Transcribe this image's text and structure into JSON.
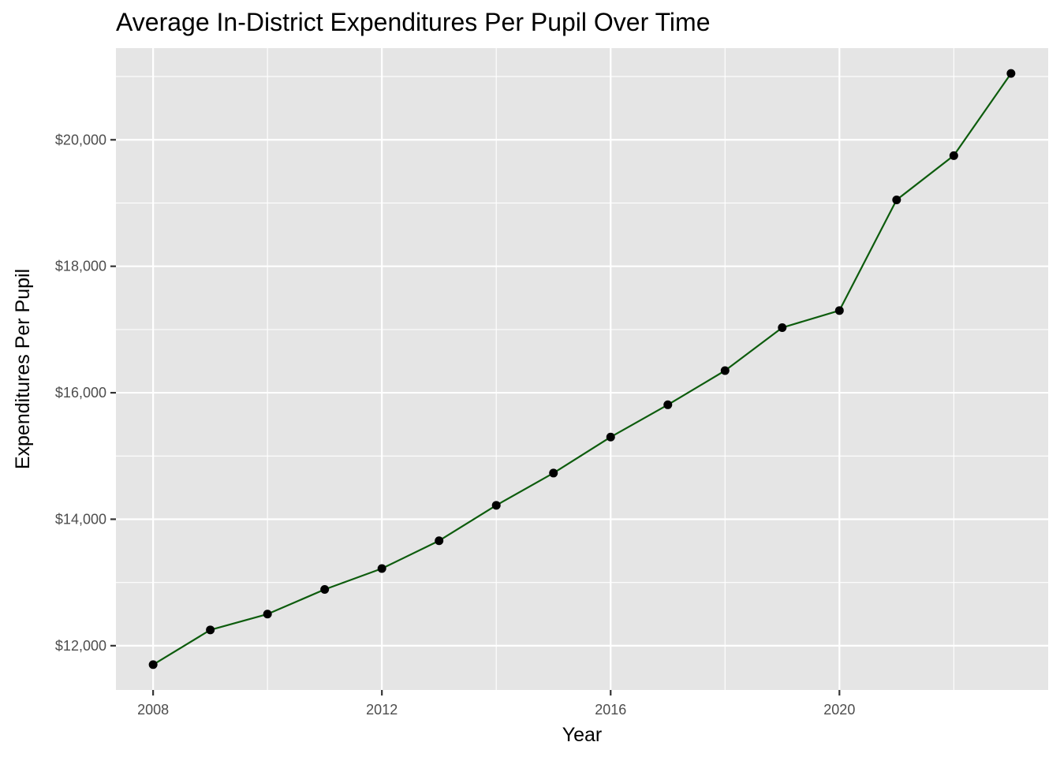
{
  "chart_data": {
    "type": "line",
    "title": "Average In-District Expenditures Per Pupil Over Time",
    "xlabel": "Year",
    "ylabel": "Expenditures Per Pupil",
    "xlim": [
      2007.35,
      2023.65
    ],
    "ylim": [
      11300,
      21450
    ],
    "x_ticks": [
      2008,
      2012,
      2016,
      2020
    ],
    "x_tick_labels": [
      "2008",
      "2012",
      "2016",
      "2020"
    ],
    "x_minor_ticks": [
      2010,
      2014,
      2018,
      2022
    ],
    "y_ticks": [
      12000,
      14000,
      16000,
      18000,
      20000
    ],
    "y_tick_labels": [
      "$12,000",
      "$14,000",
      "$16,000",
      "$18,000",
      "$20,000"
    ],
    "y_minor_ticks": [
      13000,
      15000,
      17000,
      19000,
      21000
    ],
    "grid": true,
    "line_color": "#0d5c0d",
    "point_color": "#000000",
    "panel_color": "#e5e5e5",
    "grid_color": "#ffffff",
    "series": [
      {
        "x": [
          2008,
          2009,
          2010,
          2011,
          2012,
          2013,
          2014,
          2015,
          2016,
          2017,
          2018,
          2019,
          2020,
          2021,
          2022,
          2023
        ],
        "values": [
          11700,
          12250,
          12500,
          12890,
          13220,
          13660,
          14220,
          14730,
          15300,
          15810,
          16350,
          17030,
          17300,
          19050,
          19750,
          21050
        ]
      }
    ]
  }
}
